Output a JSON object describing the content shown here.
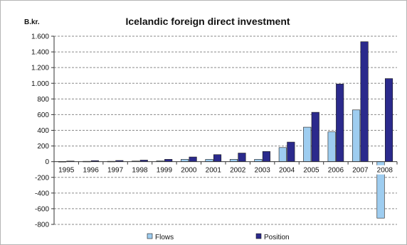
{
  "chart_data": {
    "type": "bar",
    "title": "Icelandic foreign direct investment",
    "ylabel": "B.kr.",
    "xlabel": "",
    "categories": [
      "1995",
      "1996",
      "1997",
      "1998",
      "1999",
      "2000",
      "2001",
      "2002",
      "2003",
      "2004",
      "2005",
      "2006",
      "2007",
      "2008"
    ],
    "series": [
      {
        "name": "Flows",
        "color": "#9ecdf0",
        "values": [
          3,
          5,
          5,
          8,
          10,
          30,
          30,
          30,
          30,
          180,
          440,
          380,
          660,
          -720
        ]
      },
      {
        "name": "Position",
        "color": "#2b2a8c",
        "values": [
          8,
          13,
          15,
          20,
          30,
          60,
          90,
          110,
          130,
          250,
          630,
          990,
          1530,
          1060
        ]
      }
    ],
    "ylim": [
      -800,
      1600
    ],
    "yticks": [
      -800,
      -600,
      -400,
      -200,
      0,
      200,
      400,
      600,
      800,
      1000,
      1200,
      1400,
      1600
    ],
    "ytick_labels": [
      "-800",
      "-600",
      "-400",
      "-200",
      "0",
      "200",
      "400",
      "600",
      "800",
      "1.000",
      "1.200",
      "1.400",
      "1.600"
    ],
    "grid": true,
    "legend_position": "bottom"
  }
}
